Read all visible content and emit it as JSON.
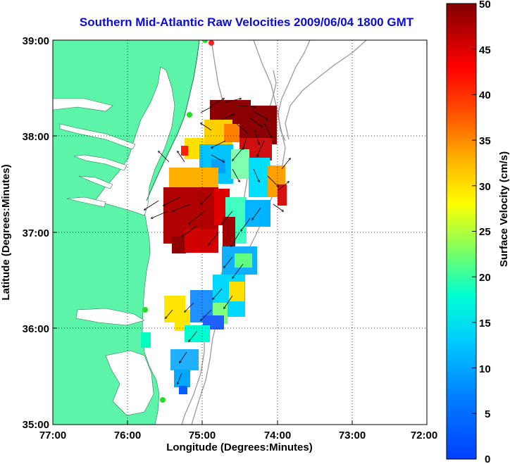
{
  "title": "Southern Mid-Atlantic Raw Velocities 2009/06/04 1800 GMT",
  "axes": {
    "xlabel": "Longitude (Degrees:Minutes)",
    "ylabel": "Latitude (Degrees:Minutes)",
    "x_ticks": [
      "77:00",
      "76:00",
      "75:00",
      "74:00",
      "73:00",
      "72:00"
    ],
    "y_ticks": [
      "39:00",
      "38:00",
      "37:00",
      "36:00",
      "35:00"
    ],
    "xlim": [
      -77,
      -72
    ],
    "ylim": [
      35,
      39
    ],
    "grid": "dotted"
  },
  "colorbar": {
    "label": "Surface Velocity (cm/s)",
    "ticks": [
      "50",
      "45",
      "40",
      "35",
      "30",
      "25",
      "20",
      "15",
      "10",
      "5",
      "0"
    ],
    "min": 0,
    "max": 50,
    "colormap": "jet"
  },
  "colors": {
    "land": "#5cf4a8",
    "water": "#ffffff",
    "title": "#0b0bd8",
    "bathymetry": "#9a9a9a",
    "station": "#22dd22",
    "station_alert": "#ff2020"
  }
}
